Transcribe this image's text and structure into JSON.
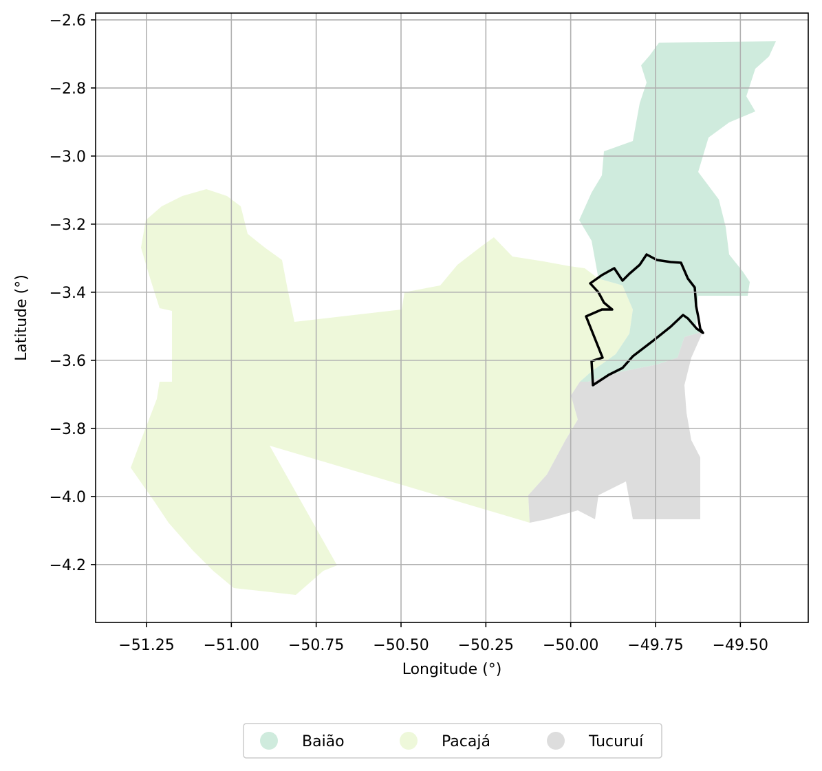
{
  "map": {
    "xlabel": "Longitude (°)",
    "ylabel": "Latitude (°)",
    "xlim": [
      -51.4,
      -49.3
    ],
    "ylim": [
      -4.37,
      -2.58
    ],
    "x_ticks": [
      -51.25,
      -51.0,
      -50.75,
      -50.5,
      -50.25,
      -50.0,
      -49.75,
      -49.5
    ],
    "x_tick_labels": [
      "−51.25",
      "−51.00",
      "−50.75",
      "−50.50",
      "−50.25",
      "−50.00",
      "−49.75",
      "−49.50"
    ],
    "y_ticks": [
      -2.6,
      -2.8,
      -3.0,
      -3.2,
      -3.4,
      -3.6,
      -3.8,
      -4.0,
      -4.2
    ],
    "y_tick_labels": [
      "−2.6",
      "−2.8",
      "−3.0",
      "−3.2",
      "−3.4",
      "−3.6",
      "−3.8",
      "−4.0",
      "−4.2"
    ],
    "grid": true,
    "legend_position": "bottom-center"
  },
  "legend": [
    {
      "label": "Baião",
      "color": "#cfebdd"
    },
    {
      "label": "Pacajá",
      "color": "#eef8da"
    },
    {
      "label": "Tucuruí",
      "color": "#dddddd"
    }
  ],
  "outline_color": "#000000"
}
